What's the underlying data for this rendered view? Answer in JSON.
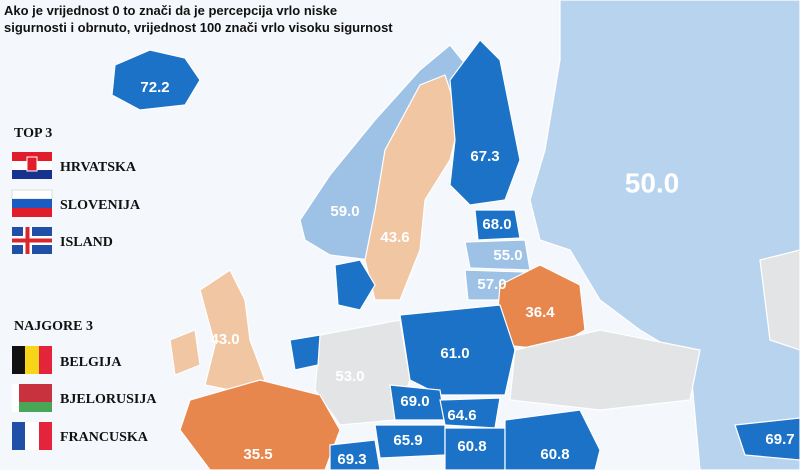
{
  "header": {
    "lines": [
      "Ako je vrijednost 0 to znači da je percepcija vrlo niske",
      "sigurnosti i obrnuto, vrijednost 100 znači vrlo visoku sigurnost"
    ]
  },
  "legend": {
    "top": {
      "title": "TOP 3",
      "items": [
        "HRVATSKA",
        "SLOVENIJA",
        "ISLAND"
      ]
    },
    "worst": {
      "title": "NAJGORE 3",
      "items": [
        "BELGIJA",
        "BJELORUSIJA",
        "FRANCUSKA"
      ]
    }
  },
  "map": {
    "values": [
      "72.2",
      "67.3",
      "50.0",
      "59.0",
      "43.6",
      "68.0",
      "55.0",
      "57.0",
      "36.4",
      "43.0",
      "61.0",
      "53.0",
      "69.0",
      "64.6",
      "65.9",
      "60.8",
      "60.8",
      "35.5",
      "69.7",
      "69.3"
    ]
  }
}
